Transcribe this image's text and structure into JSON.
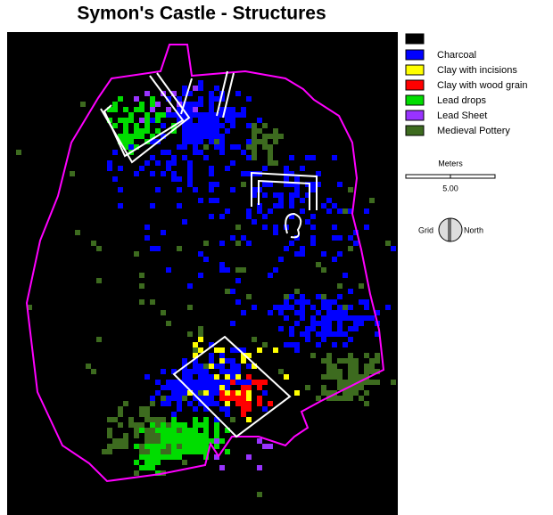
{
  "title": "Symon's Castle - Structures",
  "legend": [
    {
      "label": "Charcoal",
      "color": "#0000ff"
    },
    {
      "label": "Clay with incisions",
      "color": "#ffff00"
    },
    {
      "label": "Clay with wood grain",
      "color": "#ff0000"
    },
    {
      "label": "Lead drops",
      "color": "#00dd00"
    },
    {
      "label": "Lead Sheet",
      "color": "#9933ff"
    },
    {
      "label": "Medieval Pottery",
      "color": "#3d6b1f"
    }
  ],
  "scale": {
    "unit": "Meters",
    "length": "5.00"
  },
  "north_arrow": {
    "left": "Grid",
    "right": "North"
  }
}
